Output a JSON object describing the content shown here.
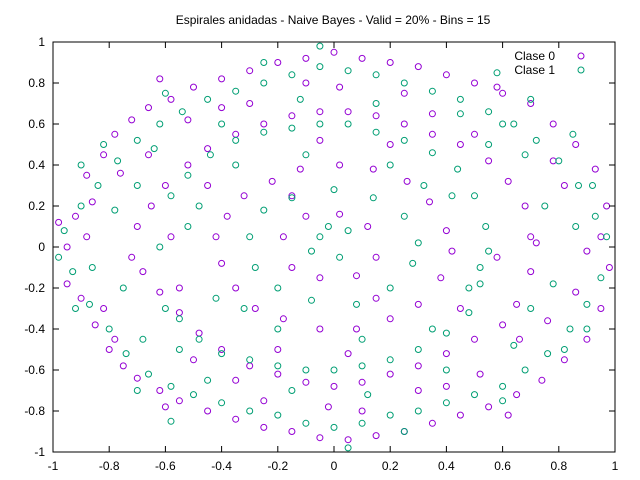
{
  "chart_data": {
    "type": "scatter",
    "title": "Espirales anidadas - Naive Bayes - Valid = 20% - Bins = 15",
    "xlabel": "",
    "ylabel": "",
    "xlim": [
      -1,
      1
    ],
    "ylim": [
      -1,
      1
    ],
    "x_ticks": [
      "-1",
      "-0.8",
      "-0.6",
      "-0.4",
      "-0.2",
      "0",
      "0.2",
      "0.4",
      "0.6",
      "0.8",
      "1"
    ],
    "y_ticks": [
      "1",
      "0.8",
      "0.6",
      "0.4",
      "0.2",
      "0",
      "-0.2",
      "-0.4",
      "-0.6",
      "-0.8",
      "-1"
    ],
    "grid": false,
    "legend_position": "top-right",
    "marker": "open-circle",
    "series": [
      {
        "name": "Clase 0",
        "color": "#9400d3",
        "points": [
          [
            -0.98,
            0.12
          ],
          [
            -0.95,
            -0.18
          ],
          [
            -0.92,
            0.15
          ],
          [
            -0.9,
            -0.25
          ],
          [
            -0.88,
            0.35
          ],
          [
            -0.85,
            -0.38
          ],
          [
            -0.82,
            0.45
          ],
          [
            -0.8,
            -0.5
          ],
          [
            -0.78,
            0.55
          ],
          [
            -0.75,
            -0.58
          ],
          [
            -0.72,
            0.62
          ],
          [
            -0.7,
            -0.64
          ],
          [
            -0.66,
            0.68
          ],
          [
            -0.62,
            -0.7
          ],
          [
            -0.58,
            0.72
          ],
          [
            -0.55,
            -0.75
          ],
          [
            -0.5,
            0.78
          ],
          [
            -0.45,
            -0.8
          ],
          [
            -0.4,
            0.82
          ],
          [
            -0.35,
            -0.84
          ],
          [
            -0.3,
            0.86
          ],
          [
            -0.25,
            -0.88
          ],
          [
            -0.2,
            0.9
          ],
          [
            -0.15,
            -0.9
          ],
          [
            -0.1,
            0.92
          ],
          [
            -0.05,
            -0.93
          ],
          [
            0.0,
            0.95
          ],
          [
            0.05,
            -0.94
          ],
          [
            0.1,
            0.92
          ],
          [
            0.15,
            -0.92
          ],
          [
            0.2,
            0.9
          ],
          [
            0.25,
            -0.9
          ],
          [
            0.3,
            0.88
          ],
          [
            0.35,
            -0.86
          ],
          [
            0.4,
            0.84
          ],
          [
            0.45,
            -0.82
          ],
          [
            0.5,
            0.8
          ],
          [
            0.55,
            -0.78
          ],
          [
            0.6,
            0.75
          ],
          [
            0.65,
            -0.72
          ],
          [
            0.7,
            0.7
          ],
          [
            0.74,
            -0.65
          ],
          [
            0.78,
            0.6
          ],
          [
            0.82,
            -0.55
          ],
          [
            0.86,
            0.5
          ],
          [
            0.9,
            -0.45
          ],
          [
            0.93,
            0.38
          ],
          [
            0.95,
            -0.3
          ],
          [
            0.97,
            0.2
          ],
          [
            0.98,
            -0.1
          ],
          [
            -0.7,
            0.1
          ],
          [
            -0.68,
            -0.12
          ],
          [
            -0.65,
            0.2
          ],
          [
            -0.62,
            -0.22
          ],
          [
            -0.6,
            0.3
          ],
          [
            -0.55,
            -0.32
          ],
          [
            -0.52,
            0.4
          ],
          [
            -0.48,
            -0.42
          ],
          [
            -0.45,
            0.48
          ],
          [
            -0.4,
            -0.5
          ],
          [
            -0.35,
            0.55
          ],
          [
            -0.3,
            -0.58
          ],
          [
            -0.25,
            0.6
          ],
          [
            -0.2,
            -0.62
          ],
          [
            -0.15,
            0.64
          ],
          [
            -0.1,
            -0.66
          ],
          [
            -0.05,
            0.66
          ],
          [
            0.0,
            -0.68
          ],
          [
            0.05,
            0.66
          ],
          [
            0.1,
            -0.66
          ],
          [
            0.15,
            0.64
          ],
          [
            0.2,
            -0.62
          ],
          [
            0.25,
            0.6
          ],
          [
            0.3,
            -0.58
          ],
          [
            0.35,
            0.55
          ],
          [
            0.4,
            -0.52
          ],
          [
            0.45,
            0.5
          ],
          [
            0.5,
            -0.45
          ],
          [
            0.55,
            0.42
          ],
          [
            0.6,
            -0.38
          ],
          [
            0.62,
            0.32
          ],
          [
            0.65,
            -0.28
          ],
          [
            0.68,
            0.2
          ],
          [
            0.7,
            -0.12
          ],
          [
            0.7,
            0.05
          ],
          [
            -0.42,
            0.05
          ],
          [
            -0.4,
            -0.08
          ],
          [
            -0.38,
            0.15
          ],
          [
            -0.35,
            -0.2
          ],
          [
            -0.32,
            0.25
          ],
          [
            -0.28,
            -0.3
          ],
          [
            -0.22,
            0.32
          ],
          [
            -0.18,
            -0.35
          ],
          [
            -0.12,
            0.38
          ],
          [
            -0.05,
            -0.4
          ],
          [
            0.02,
            0.4
          ],
          [
            0.08,
            -0.4
          ],
          [
            0.14,
            0.38
          ],
          [
            0.2,
            -0.35
          ],
          [
            0.26,
            0.32
          ],
          [
            0.3,
            -0.28
          ],
          [
            0.34,
            0.22
          ],
          [
            0.38,
            -0.15
          ],
          [
            0.4,
            0.08
          ],
          [
            0.42,
            -0.02
          ],
          [
            -0.18,
            0.05
          ],
          [
            -0.15,
            -0.1
          ],
          [
            -0.1,
            0.15
          ],
          [
            -0.05,
            -0.15
          ],
          [
            0.02,
            0.16
          ],
          [
            0.08,
            -0.14
          ],
          [
            0.12,
            0.1
          ],
          [
            0.15,
            -0.05
          ],
          [
            -0.6,
            -0.78
          ],
          [
            0.58,
            0.78
          ],
          [
            -0.78,
            -0.45
          ],
          [
            0.78,
            0.42
          ],
          [
            -0.88,
            0.05
          ],
          [
            0.9,
            -0.02
          ],
          [
            -0.52,
            0.62
          ],
          [
            0.52,
            -0.62
          ],
          [
            -0.3,
            0.7
          ],
          [
            0.3,
            -0.7
          ],
          [
            -0.82,
            -0.3
          ],
          [
            0.82,
            0.3
          ],
          [
            -0.5,
            -0.55
          ],
          [
            0.5,
            0.55
          ],
          [
            -0.66,
            0.45
          ],
          [
            0.66,
            -0.45
          ],
          [
            -0.1,
            0.8
          ],
          [
            0.1,
            -0.8
          ],
          [
            -0.72,
            -0.05
          ],
          [
            0.72,
            0.02
          ],
          [
            -0.25,
            -0.75
          ],
          [
            0.25,
            0.75
          ],
          [
            -0.45,
            0.3
          ],
          [
            0.45,
            -0.3
          ],
          [
            -0.05,
            0.52
          ],
          [
            0.05,
            -0.52
          ],
          [
            -0.58,
            0.05
          ],
          [
            0.58,
            -0.05
          ],
          [
            -0.35,
            -0.65
          ],
          [
            0.35,
            0.65
          ],
          [
            -0.15,
            0.25
          ],
          [
            0.15,
            -0.25
          ],
          [
            -0.95,
            0.0
          ],
          [
            0.95,
            0.05
          ],
          [
            -0.62,
            0.82
          ],
          [
            0.62,
            -0.82
          ],
          [
            -0.2,
            -0.5
          ],
          [
            0.2,
            0.5
          ],
          [
            -0.86,
            0.22
          ],
          [
            0.86,
            -0.22
          ],
          [
            -0.4,
            0.68
          ],
          [
            0.4,
            -0.68
          ],
          [
            -0.76,
            0.36
          ],
          [
            0.76,
            -0.36
          ],
          [
            -0.02,
            -0.78
          ],
          [
            0.02,
            0.78
          ],
          [
            -0.55,
            -0.2
          ]
        ]
      },
      {
        "name": "Clase 1",
        "color": "#009e73",
        "points": [
          [
            -0.98,
            -0.05
          ],
          [
            -0.96,
            0.08
          ],
          [
            -0.93,
            -0.12
          ],
          [
            -0.9,
            0.2
          ],
          [
            -0.87,
            -0.28
          ],
          [
            -0.84,
            0.3
          ],
          [
            -0.8,
            -0.4
          ],
          [
            -0.77,
            0.42
          ],
          [
            -0.74,
            -0.52
          ],
          [
            -0.7,
            0.52
          ],
          [
            -0.66,
            -0.62
          ],
          [
            -0.62,
            0.6
          ],
          [
            -0.58,
            -0.68
          ],
          [
            -0.54,
            0.66
          ],
          [
            -0.5,
            -0.72
          ],
          [
            -0.45,
            0.72
          ],
          [
            -0.4,
            -0.76
          ],
          [
            -0.35,
            0.76
          ],
          [
            -0.3,
            -0.8
          ],
          [
            -0.25,
            0.8
          ],
          [
            -0.2,
            -0.82
          ],
          [
            -0.15,
            0.84
          ],
          [
            -0.1,
            -0.86
          ],
          [
            -0.05,
            0.88
          ],
          [
            0.0,
            -0.88
          ],
          [
            0.05,
            0.86
          ],
          [
            0.1,
            -0.86
          ],
          [
            0.15,
            0.84
          ],
          [
            0.2,
            -0.82
          ],
          [
            0.25,
            0.8
          ],
          [
            0.3,
            -0.8
          ],
          [
            0.35,
            0.76
          ],
          [
            0.4,
            -0.76
          ],
          [
            0.45,
            0.72
          ],
          [
            0.5,
            -0.72
          ],
          [
            0.55,
            0.66
          ],
          [
            0.6,
            -0.68
          ],
          [
            0.64,
            0.6
          ],
          [
            0.68,
            -0.6
          ],
          [
            0.72,
            0.52
          ],
          [
            0.76,
            -0.52
          ],
          [
            0.8,
            0.42
          ],
          [
            0.84,
            -0.4
          ],
          [
            0.87,
            0.3
          ],
          [
            0.9,
            -0.28
          ],
          [
            0.93,
            0.15
          ],
          [
            0.95,
            -0.15
          ],
          [
            0.97,
            0.05
          ],
          [
            0.85,
            0.55
          ],
          [
            0.6,
            0.6
          ],
          [
            -0.6,
            -0.3
          ],
          [
            -0.58,
            0.25
          ],
          [
            -0.55,
            -0.35
          ],
          [
            -0.52,
            0.35
          ],
          [
            -0.48,
            -0.45
          ],
          [
            -0.44,
            0.45
          ],
          [
            -0.4,
            -0.52
          ],
          [
            -0.35,
            0.52
          ],
          [
            -0.3,
            -0.55
          ],
          [
            -0.25,
            0.56
          ],
          [
            -0.2,
            -0.58
          ],
          [
            -0.15,
            0.58
          ],
          [
            -0.1,
            -0.6
          ],
          [
            -0.05,
            0.6
          ],
          [
            0.0,
            -0.6
          ],
          [
            0.05,
            0.6
          ],
          [
            0.1,
            -0.58
          ],
          [
            0.15,
            0.56
          ],
          [
            0.2,
            -0.55
          ],
          [
            0.25,
            0.52
          ],
          [
            0.3,
            -0.5
          ],
          [
            0.35,
            0.46
          ],
          [
            0.4,
            -0.42
          ],
          [
            0.44,
            0.38
          ],
          [
            0.48,
            -0.32
          ],
          [
            0.5,
            0.25
          ],
          [
            0.52,
            -0.18
          ],
          [
            0.54,
            0.1
          ],
          [
            0.55,
            -0.02
          ],
          [
            -0.62,
            0.0
          ],
          [
            -0.3,
            0.05
          ],
          [
            -0.28,
            -0.1
          ],
          [
            -0.25,
            0.18
          ],
          [
            -0.2,
            -0.2
          ],
          [
            -0.15,
            0.24
          ],
          [
            -0.08,
            -0.26
          ],
          [
            0.0,
            0.28
          ],
          [
            0.08,
            -0.28
          ],
          [
            0.14,
            0.24
          ],
          [
            0.2,
            -0.2
          ],
          [
            0.25,
            0.15
          ],
          [
            0.28,
            -0.08
          ],
          [
            0.3,
            0.02
          ],
          [
            -0.05,
            0.05
          ],
          [
            0.02,
            -0.05
          ],
          [
            -0.02,
            0.1
          ],
          [
            0.05,
            0.08
          ],
          [
            -0.08,
            -0.02
          ],
          [
            -0.7,
            -0.7
          ],
          [
            0.7,
            0.72
          ],
          [
            -0.82,
            0.5
          ],
          [
            0.82,
            -0.5
          ],
          [
            -0.6,
            0.75
          ],
          [
            0.6,
            -0.75
          ],
          [
            -0.92,
            -0.3
          ],
          [
            0.92,
            0.3
          ],
          [
            -0.45,
            -0.65
          ],
          [
            0.45,
            0.65
          ],
          [
            -0.7,
            0.3
          ],
          [
            0.7,
            -0.3
          ],
          [
            -0.35,
            0.4
          ],
          [
            0.35,
            -0.4
          ],
          [
            -0.12,
            0.72
          ],
          [
            0.12,
            -0.72
          ],
          [
            -0.75,
            -0.2
          ],
          [
            0.75,
            0.2
          ],
          [
            -0.52,
            0.1
          ],
          [
            0.52,
            -0.1
          ],
          [
            -0.2,
            -0.4
          ],
          [
            0.2,
            0.4
          ],
          [
            -0.64,
            0.48
          ],
          [
            0.64,
            -0.48
          ],
          [
            -0.4,
            0.6
          ],
          [
            0.4,
            -0.6
          ],
          [
            -0.86,
            -0.1
          ],
          [
            0.86,
            0.1
          ],
          [
            -0.25,
            0.9
          ],
          [
            0.25,
            -0.9
          ],
          [
            -0.55,
            -0.5
          ],
          [
            0.55,
            0.5
          ],
          [
            -0.1,
            0.45
          ],
          [
            0.1,
            -0.45
          ],
          [
            -0.78,
            0.18
          ],
          [
            0.78,
            -0.18
          ],
          [
            -0.32,
            -0.3
          ],
          [
            0.32,
            0.3
          ],
          [
            -0.68,
            -0.45
          ],
          [
            0.68,
            0.45
          ],
          [
            -0.15,
            -0.7
          ],
          [
            0.15,
            0.7
          ],
          [
            -0.48,
            0.2
          ],
          [
            0.48,
            -0.2
          ],
          [
            -0.9,
            0.4
          ],
          [
            0.9,
            -0.4
          ],
          [
            -0.05,
            0.98
          ],
          [
            0.05,
            -0.98
          ],
          [
            -0.42,
            -0.25
          ],
          [
            0.42,
            0.25
          ],
          [
            -0.58,
            -0.85
          ],
          [
            0.58,
            0.85
          ]
        ]
      }
    ]
  }
}
